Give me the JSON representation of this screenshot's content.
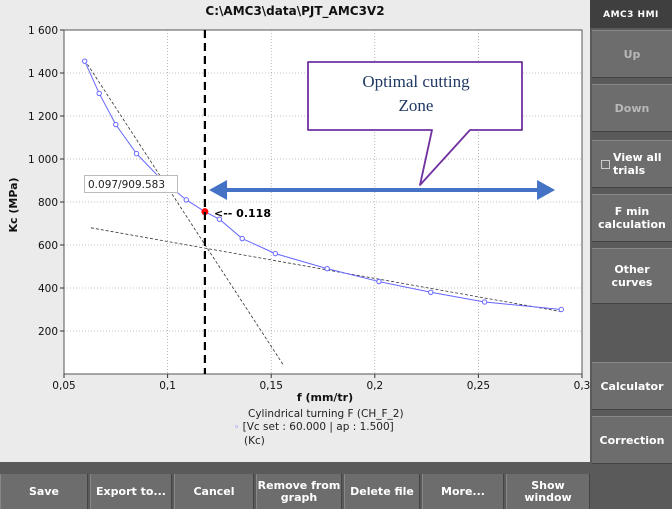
{
  "window_title": "C:\\AMC3\\data\\PJT_AMC3V2",
  "side_panel": {
    "title": "AMC3 HMI",
    "up": "Up",
    "down": "Down",
    "view_all": "View all trials",
    "fmin": "F min calculation",
    "other_curves": "Other curves",
    "calculator": "Calculator",
    "correction": "Correction"
  },
  "bottom_bar": {
    "save": "Save",
    "export": "Export to...",
    "cancel": "Cancel",
    "remove": "Remove from graph",
    "delete": "Delete file",
    "more": "More...",
    "show_window": "Show window"
  },
  "callout": {
    "line1": "Optimal cutting",
    "line2": "Zone"
  },
  "marker_label": "<-- 0.118",
  "cursor_readout": "0.097/909.583",
  "legend": {
    "line1": "Cylindrical turning F (CH_F_2)",
    "line2": "[Vc set : 60.000 | ap : 1.500]",
    "line3": "(Kc)"
  },
  "chart_data": {
    "type": "line",
    "xlabel": "f (mm/tr)",
    "ylabel": "Kc (MPa)",
    "xlim": [
      0.05,
      0.3
    ],
    "ylim": [
      0,
      1600
    ],
    "x_ticks": [
      "0,05",
      "0,1",
      "0,15",
      "0,2",
      "0,25",
      "0,3"
    ],
    "y_ticks": [
      "200",
      "400",
      "600",
      "800",
      "1 000",
      "1 200",
      "1 400",
      "1 600"
    ],
    "series": [
      {
        "name": "[Vc set : 60.000 | ap : 1.500]",
        "color": "#6666ff",
        "x": [
          0.06,
          0.067,
          0.075,
          0.085,
          0.097,
          0.109,
          0.118,
          0.125,
          0.136,
          0.152,
          0.177,
          0.202,
          0.227,
          0.253,
          0.29
        ],
        "y": [
          1455,
          1305,
          1160,
          1025,
          905,
          810,
          755,
          720,
          630,
          560,
          490,
          430,
          380,
          335,
          300
        ]
      }
    ],
    "marker": {
      "x": 0.118,
      "y": 755,
      "color": "#ff0000"
    },
    "vertical_line_x": 0.118,
    "tangents": [
      {
        "x": [
          0.06,
          0.156
        ],
        "y": [
          1460,
          40
        ]
      },
      {
        "x": [
          0.063,
          0.29
        ],
        "y": [
          680,
          290
        ]
      }
    ],
    "arrow_x_range": [
      0.12,
      0.287
    ],
    "arrow_y": 800,
    "grid": true
  }
}
